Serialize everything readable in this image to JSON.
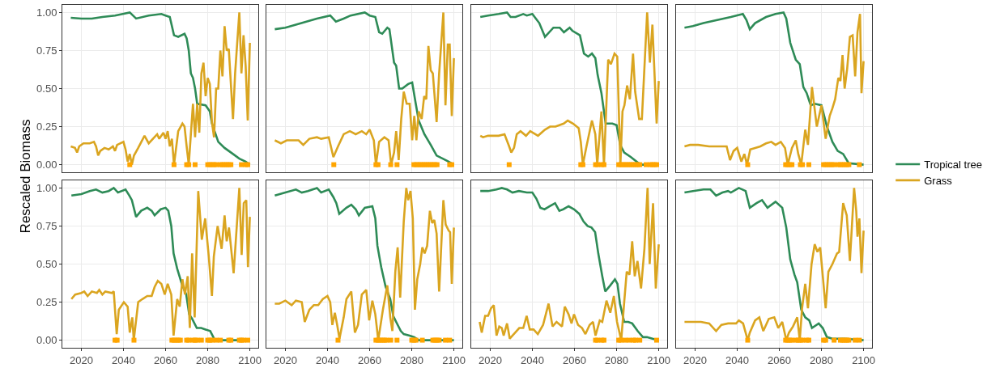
{
  "chart_data": [
    {
      "type": "line",
      "ylabel": "Rescaled Biomass",
      "xlim": [
        2011,
        2104
      ],
      "xticks": [
        2020,
        2040,
        2060,
        2080,
        2100
      ],
      "ylim": [
        -0.05,
        1.05
      ],
      "yticks": [
        {
          "value": 0,
          "label": "0.00"
        },
        {
          "value": 0.25,
          "label": "0.25"
        },
        {
          "value": 0.5,
          "label": "0.50"
        },
        {
          "value": 0.75,
          "label": "0.75"
        },
        {
          "value": 1,
          "label": "1.00"
        }
      ],
      "grid": true,
      "tick_labels": "y",
      "series": [
        {
          "color": "#2e8b57",
          "x": [
            2015,
            2020,
            2025,
            2030,
            2036,
            2043,
            2046,
            2052,
            2058,
            2060,
            2062,
            2064,
            2066,
            2069,
            2070,
            2071,
            2072,
            2073,
            2074,
            2075,
            2079,
            2081,
            2082,
            2085,
            2088,
            2092,
            2095,
            2098,
            2100
          ],
          "values": [
            0.965,
            0.96,
            0.96,
            0.97,
            0.98,
            1.0,
            0.96,
            0.98,
            0.99,
            0.98,
            0.97,
            0.85,
            0.84,
            0.86,
            0.83,
            0.75,
            0.6,
            0.57,
            0.5,
            0.4,
            0.39,
            0.35,
            0.27,
            0.15,
            0.11,
            0.07,
            0.04,
            0.02,
            0.0
          ]
        },
        {
          "color": "#daa520",
          "x": [
            2015,
            2017,
            2018,
            2019,
            2021,
            2024,
            2026,
            2027,
            2028,
            2029,
            2031,
            2033,
            2035,
            2036,
            2037,
            2040,
            2041,
            2042,
            2043,
            2044,
            2045,
            2047,
            2050,
            2052,
            2054,
            2056,
            2057,
            2059,
            2060,
            2061,
            2062,
            2063,
            2064,
            2066,
            2068,
            2069,
            2070,
            2071,
            2072,
            2073,
            2074,
            2075,
            2076,
            2077,
            2078,
            2079,
            2080,
            2081,
            2082,
            2083,
            2084,
            2085,
            2086,
            2087,
            2088,
            2089,
            2090,
            2092,
            2093,
            2095,
            2096,
            2097,
            2098,
            2099,
            2100
          ],
          "values": [
            0.12,
            0.11,
            0.08,
            0.12,
            0.14,
            0.14,
            0.15,
            0.12,
            0.06,
            0.09,
            0.11,
            0.1,
            0.12,
            0.09,
            0.13,
            0.15,
            0.1,
            0.02,
            0.07,
            0.0,
            0.06,
            0.11,
            0.19,
            0.14,
            0.17,
            0.2,
            0.17,
            0.21,
            0.17,
            0.22,
            0.12,
            0.17,
            0.0,
            0.22,
            0.27,
            0.25,
            0.12,
            0.0,
            0.2,
            0.4,
            0.18,
            0.4,
            0.21,
            0.6,
            0.67,
            0.45,
            0.57,
            0.53,
            0.28,
            0.18,
            0.5,
            0.5,
            0.75,
            0.58,
            0.91,
            0.75,
            0.76,
            0.3,
            0.6,
            1.0,
            0.6,
            0.85,
            0.65,
            0.29,
            0.8
          ]
        },
        {
          "type": "scatter",
          "color": "#ffa500",
          "x": [
            2043,
            2064,
            2070,
            2071,
            2074,
            2080,
            2081,
            2082,
            2083,
            2084,
            2086,
            2087,
            2088,
            2089,
            2090,
            2091,
            2096,
            2098,
            2099
          ],
          "values": [
            0,
            0,
            0,
            0,
            0,
            0,
            0,
            0,
            0,
            0,
            0,
            0,
            0,
            0,
            0,
            0,
            0,
            0,
            0
          ]
        }
      ]
    },
    {
      "type": "line",
      "xlim": [
        2011,
        2104
      ],
      "xticks": [
        2020,
        2040,
        2060,
        2080,
        2100
      ],
      "ylim": [
        -0.05,
        1.05
      ],
      "yticks": [
        0,
        0.25,
        0.5,
        0.75,
        1
      ],
      "grid": true,
      "tick_labels": false,
      "series": [
        {
          "color": "#2e8b57",
          "x": [
            2015,
            2020,
            2025,
            2030,
            2035,
            2041.3,
            2044,
            2047.7,
            2051,
            2057.7,
            2060,
            2062.7,
            2064.5,
            2066,
            2068.4,
            2069.4,
            2070.5,
            2071.6,
            2072.6,
            2074,
            2075.5,
            2078.3,
            2080.2,
            2081.9,
            2083.3,
            2086,
            2089,
            2091.8,
            2094.7,
            2097.5,
            2100
          ],
          "values": [
            0.89,
            0.9,
            0.92,
            0.94,
            0.96,
            0.98,
            0.94,
            0.96,
            0.98,
            1.0,
            0.98,
            0.97,
            0.87,
            0.86,
            0.9,
            0.89,
            0.78,
            0.67,
            0.65,
            0.5,
            0.5,
            0.53,
            0.54,
            0.4,
            0.29,
            0.2,
            0.13,
            0.06,
            0.04,
            0.02,
            0.0
          ]
        },
        {
          "color": "#daa520",
          "x": [
            2015,
            2017.9,
            2020.7,
            2023.5,
            2026.3,
            2028.5,
            2031.4,
            2035,
            2037,
            2040.6,
            2042.8,
            2045,
            2047.7,
            2050.6,
            2053.4,
            2056.3,
            2058.4,
            2060,
            2062,
            2063,
            2064.5,
            2067,
            2069,
            2070.2,
            2071.6,
            2072.6,
            2073.8,
            2075,
            2076.2,
            2077.6,
            2079,
            2080.2,
            2081.2,
            2082.2,
            2083.3,
            2084.7,
            2085.9,
            2086.9,
            2087.9,
            2089,
            2090,
            2091.8,
            2093,
            2095,
            2096,
            2097.1,
            2098,
            2099,
            2100
          ],
          "values": [
            0.16,
            0.14,
            0.16,
            0.16,
            0.16,
            0.13,
            0.17,
            0.18,
            0.17,
            0.18,
            0.05,
            0.12,
            0.2,
            0.22,
            0.2,
            0.22,
            0.2,
            0.23,
            0.16,
            0.0,
            0.15,
            0.18,
            0.16,
            0.0,
            0.08,
            0.22,
            0.03,
            0.3,
            0.48,
            0.4,
            0.4,
            0.16,
            0.32,
            0.16,
            0.35,
            0.3,
            0.45,
            0.43,
            0.78,
            0.62,
            0.6,
            0.28,
            0.6,
            1.0,
            0.39,
            0.79,
            0.79,
            0.32,
            0.7
          ]
        },
        {
          "type": "scatter",
          "color": "#ffa500",
          "x": [
            2043,
            2063,
            2064,
            2070,
            2073,
            2081,
            2082,
            2083,
            2084,
            2085,
            2086,
            2087,
            2088,
            2089,
            2090,
            2091,
            2092,
            2098,
            2099
          ],
          "values": [
            0,
            0,
            0,
            0,
            0,
            0,
            0,
            0,
            0,
            0,
            0,
            0,
            0,
            0,
            0,
            0,
            0,
            0,
            0
          ]
        }
      ]
    },
    {
      "type": "line",
      "xlim": [
        2011,
        2104
      ],
      "xticks": [
        2020,
        2040,
        2060,
        2080,
        2100
      ],
      "ylim": [
        -0.05,
        1.05
      ],
      "yticks": [
        0,
        0.25,
        0.5,
        0.75,
        1
      ],
      "grid": true,
      "tick_labels": false,
      "series": [
        {
          "color": "#2e8b57",
          "x": [
            2015.3,
            2019,
            2024,
            2028,
            2029.7,
            2032,
            2035.7,
            2037.4,
            2040,
            2043.3,
            2046,
            2050,
            2053,
            2055,
            2057.7,
            2059,
            2062.6,
            2064.5,
            2066.5,
            2068.3,
            2069.9,
            2071,
            2072.8,
            2074.8,
            2078,
            2080,
            2081.7,
            2083.6,
            2086.8,
            2091.3,
            2100
          ],
          "values": [
            0.97,
            0.98,
            0.99,
            1.0,
            0.97,
            0.97,
            0.99,
            0.98,
            0.99,
            0.93,
            0.84,
            0.9,
            0.9,
            0.87,
            0.9,
            0.88,
            0.85,
            0.73,
            0.71,
            0.73,
            0.7,
            0.59,
            0.47,
            0.27,
            0.27,
            0.26,
            0.13,
            0.08,
            0.05,
            0.0,
            0.0
          ]
        },
        {
          "color": "#daa520",
          "x": [
            2015.3,
            2016.6,
            2019,
            2021.7,
            2024,
            2026.8,
            2029,
            2030,
            2031.3,
            2032.6,
            2034.4,
            2037,
            2039,
            2042.7,
            2046,
            2048.4,
            2051,
            2054.9,
            2056.8,
            2059.3,
            2062,
            2063,
            2064,
            2065.7,
            2068.3,
            2069.9,
            2070.8,
            2072.8,
            2074,
            2076,
            2077.3,
            2079,
            2080.3,
            2081.8,
            2082.8,
            2083.7,
            2085,
            2086.3,
            2087.8,
            2088.8,
            2090.7,
            2092,
            2094.5,
            2095.8,
            2097,
            2099,
            2100
          ],
          "values": [
            0.19,
            0.18,
            0.19,
            0.19,
            0.19,
            0.2,
            0.12,
            0.08,
            0.11,
            0.2,
            0.22,
            0.19,
            0.22,
            0.19,
            0.23,
            0.25,
            0.25,
            0.27,
            0.29,
            0.27,
            0.24,
            0.15,
            0.0,
            0.12,
            0.29,
            0.2,
            0.0,
            0.35,
            0.0,
            0.69,
            0.66,
            0.73,
            0.71,
            0.0,
            0.35,
            0.39,
            0.52,
            0.43,
            0.73,
            0.48,
            0.3,
            0.3,
            1.0,
            0.67,
            0.92,
            0.27,
            0.55
          ]
        },
        {
          "type": "scatter",
          "color": "#ffa500",
          "x": [
            2029,
            2063,
            2064,
            2070,
            2071,
            2073,
            2074,
            2081,
            2082,
            2083,
            2084,
            2085,
            2086,
            2087,
            2088,
            2089,
            2090,
            2091,
            2094,
            2096,
            2097,
            2098,
            2099
          ],
          "values": [
            0,
            0,
            0,
            0,
            0,
            0,
            0,
            0,
            0,
            0,
            0,
            0,
            0,
            0,
            0,
            0,
            0,
            0,
            0,
            0,
            0,
            0,
            0
          ]
        }
      ]
    },
    {
      "type": "line",
      "xlim": [
        2011,
        2104
      ],
      "xticks": [
        2020,
        2040,
        2060,
        2080,
        2100
      ],
      "ylim": [
        -0.05,
        1.05
      ],
      "yticks": [
        0,
        0.25,
        0.5,
        0.75,
        1
      ],
      "grid": true,
      "tick_labels": false,
      "legend": "right",
      "series": [
        {
          "name": "Tropical tree",
          "color": "#2e8b57",
          "x": [
            2015,
            2019,
            2024,
            2030.5,
            2037,
            2042.7,
            2044.4,
            2046,
            2048.5,
            2053.7,
            2058.2,
            2062,
            2063.3,
            2065.2,
            2067.8,
            2069.7,
            2071.4,
            2073,
            2074.9,
            2076.8,
            2080,
            2082.6,
            2085.2,
            2087.7,
            2090.3,
            2092.9,
            2100
          ],
          "values": [
            0.9,
            0.91,
            0.93,
            0.95,
            0.97,
            0.99,
            0.95,
            0.89,
            0.93,
            0.97,
            0.99,
            1.0,
            0.96,
            0.8,
            0.69,
            0.66,
            0.51,
            0.47,
            0.39,
            0.4,
            0.39,
            0.25,
            0.15,
            0.09,
            0.07,
            0.01,
            0.0
          ]
        },
        {
          "name": "Grass",
          "color": "#daa520",
          "x": [
            2015,
            2017.6,
            2021.5,
            2026.7,
            2031.8,
            2035,
            2036.6,
            2038.3,
            2040,
            2042,
            2043.4,
            2044.7,
            2046.2,
            2048.5,
            2051,
            2053.7,
            2056.2,
            2058.2,
            2060.7,
            2062.7,
            2064,
            2066,
            2067.8,
            2069,
            2070.4,
            2072.3,
            2073.6,
            2075.5,
            2077.8,
            2080,
            2082,
            2083.9,
            2085.2,
            2086.5,
            2088,
            2089,
            2090,
            2091,
            2092.2,
            2093.5,
            2094.8,
            2096,
            2097.1,
            2098.3,
            2099,
            2100
          ],
          "values": [
            0.12,
            0.13,
            0.13,
            0.12,
            0.12,
            0.12,
            0.03,
            0.09,
            0.11,
            0.02,
            0.07,
            0.0,
            0.1,
            0.11,
            0.12,
            0.14,
            0.15,
            0.13,
            0.15,
            0.11,
            0.0,
            0.11,
            0.16,
            0.07,
            0.0,
            0.23,
            0.13,
            0.51,
            0.25,
            0.39,
            0.17,
            0.32,
            0.37,
            0.43,
            0.57,
            0.55,
            0.72,
            0.5,
            0.63,
            0.84,
            0.85,
            0.58,
            0.87,
            0.99,
            0.47,
            0.68
          ]
        },
        {
          "type": "scatter",
          "color": "#ffa500",
          "x": [
            2045,
            2063,
            2064,
            2065,
            2066,
            2070,
            2071,
            2074,
            2081,
            2082,
            2083,
            2084,
            2085,
            2086,
            2088,
            2089,
            2090,
            2091,
            2092,
            2093,
            2098
          ],
          "values": [
            0,
            0,
            0,
            0,
            0,
            0,
            0,
            0,
            0,
            0,
            0,
            0,
            0,
            0,
            0,
            0,
            0,
            0,
            0,
            0,
            0
          ]
        }
      ]
    },
    {
      "type": "line",
      "xlim": [
        2011,
        2104
      ],
      "xticks": [
        2020,
        2040,
        2060,
        2080,
        2100
      ],
      "ylim": [
        -0.05,
        1.05
      ],
      "yticks": [
        {
          "value": 0,
          "label": "0.00"
        },
        {
          "value": 0.25,
          "label": "0.25"
        },
        {
          "value": 0.5,
          "label": "0.50"
        },
        {
          "value": 0.75,
          "label": "0.75"
        },
        {
          "value": 1,
          "label": "1.00"
        }
      ],
      "grid": true,
      "series": [
        {
          "color": "#2e8b57",
          "x": [
            2015.3,
            2020,
            2024,
            2027,
            2030,
            2033,
            2035.4,
            2037.4,
            2041,
            2042.8,
            2044,
            2046,
            2048.4,
            2051.3,
            2053.4,
            2054.8,
            2057.7,
            2060,
            2061.3,
            2062.7,
            2063.8,
            2065.5,
            2067.7,
            2069.8,
            2071.2,
            2072.6,
            2074.8,
            2076.9,
            2079,
            2081.2,
            2083.4,
            2100
          ],
          "values": [
            0.95,
            0.96,
            0.98,
            0.99,
            0.97,
            0.98,
            1.0,
            0.97,
            0.99,
            0.95,
            0.92,
            0.81,
            0.85,
            0.87,
            0.85,
            0.82,
            0.86,
            0.87,
            0.85,
            0.75,
            0.57,
            0.47,
            0.37,
            0.3,
            0.17,
            0.14,
            0.08,
            0.08,
            0.07,
            0.06,
            0.0,
            0.0
          ]
        },
        {
          "color": "#daa520",
          "x": [
            2015.3,
            2017.1,
            2020,
            2021.4,
            2023,
            2025,
            2027.4,
            2028.5,
            2030,
            2031.4,
            2034.5,
            2035.4,
            2036.8,
            2037.8,
            2040.2,
            2042,
            2043,
            2044.2,
            2044.9,
            2047,
            2049,
            2051.3,
            2053.4,
            2054.8,
            2056.3,
            2058,
            2059.6,
            2061,
            2062.7,
            2063.8,
            2065.5,
            2066.7,
            2068,
            2069.2,
            2070.5,
            2071.5,
            2072.6,
            2073.8,
            2075.5,
            2077.2,
            2078.8,
            2080.5,
            2082,
            2082.9,
            2084.7,
            2086.6,
            2088,
            2089,
            2090.1,
            2092.3,
            2095,
            2096.1,
            2097.1,
            2098.3,
            2099.1,
            2100
          ],
          "values": [
            0.27,
            0.3,
            0.31,
            0.32,
            0.29,
            0.32,
            0.31,
            0.33,
            0.3,
            0.32,
            0.31,
            0.32,
            0.04,
            0.2,
            0.25,
            0.22,
            0.05,
            0.15,
            0.0,
            0.25,
            0.27,
            0.29,
            0.29,
            0.35,
            0.39,
            0.37,
            0.3,
            0.37,
            0.3,
            0.03,
            0.27,
            0.22,
            0.4,
            0.3,
            0.42,
            0.08,
            0.57,
            0.15,
            0.98,
            0.66,
            0.8,
            0.55,
            0.29,
            0.55,
            0.75,
            0.6,
            0.82,
            0.65,
            0.74,
            0.44,
            1.0,
            0.56,
            0.9,
            0.92,
            0.48,
            0.81
          ]
        },
        {
          "type": "scatter",
          "color": "#ffa500",
          "x": [
            2036,
            2037,
            2045,
            2063,
            2064,
            2065,
            2066,
            2067,
            2070,
            2071,
            2073,
            2074,
            2075,
            2077,
            2080,
            2081,
            2082,
            2084,
            2086,
            2090,
            2091,
            2095,
            2096,
            2097,
            2099
          ],
          "values": [
            0,
            0,
            0,
            0,
            0,
            0,
            0,
            0,
            0,
            0,
            0,
            0,
            0,
            0,
            0,
            0,
            0,
            0,
            0,
            0,
            0,
            0,
            0,
            0,
            0
          ]
        }
      ]
    },
    {
      "type": "line",
      "xlim": [
        2011,
        2104
      ],
      "xticks": [
        2020,
        2040,
        2060,
        2080,
        2100
      ],
      "ylim": [
        -0.05,
        1.05
      ],
      "yticks": [
        0,
        0.25,
        0.5,
        0.75,
        1
      ],
      "grid": true,
      "tick_labels": "x",
      "series": [
        {
          "color": "#2e8b57",
          "x": [
            2015,
            2020,
            2025,
            2027.8,
            2030.7,
            2035,
            2037,
            2040.6,
            2042.8,
            2044.2,
            2045.6,
            2049,
            2051.3,
            2053.4,
            2054.9,
            2057.7,
            2061.3,
            2062.7,
            2063.7,
            2065.5,
            2067.6,
            2069.8,
            2071.2,
            2072.6,
            2074.8,
            2076.2,
            2079,
            2081.2,
            2083.3,
            2100
          ],
          "values": [
            0.95,
            0.97,
            0.99,
            0.97,
            0.98,
            1.0,
            0.97,
            0.99,
            0.94,
            0.9,
            0.83,
            0.87,
            0.89,
            0.86,
            0.82,
            0.87,
            0.88,
            0.8,
            0.62,
            0.48,
            0.35,
            0.27,
            0.16,
            0.12,
            0.06,
            0.04,
            0.03,
            0.02,
            0.0,
            0.0
          ]
        },
        {
          "color": "#daa520",
          "x": [
            2015,
            2017.1,
            2020,
            2023,
            2025,
            2027.8,
            2029.2,
            2031.4,
            2033.5,
            2035.6,
            2037.8,
            2040,
            2041.3,
            2042.3,
            2043.5,
            2044.6,
            2045.7,
            2047.7,
            2049,
            2051.3,
            2053,
            2054.5,
            2056.3,
            2058.4,
            2059.8,
            2061.3,
            2062.7,
            2064.1,
            2066.3,
            2068.4,
            2069.8,
            2070.8,
            2072.2,
            2073.3,
            2074.5,
            2076.2,
            2077.4,
            2078.3,
            2079.4,
            2080.5,
            2081.5,
            2082.6,
            2084,
            2085,
            2086.1,
            2087.3,
            2088.6,
            2089.7,
            2090.7,
            2091.8,
            2093,
            2095,
            2096.1,
            2097.5,
            2098.2,
            2099,
            2100
          ],
          "values": [
            0.24,
            0.24,
            0.26,
            0.23,
            0.26,
            0.25,
            0.12,
            0.2,
            0.23,
            0.23,
            0.27,
            0.29,
            0.25,
            0.1,
            0.18,
            0.1,
            0.01,
            0.15,
            0.27,
            0.32,
            0.05,
            0.1,
            0.3,
            0.33,
            0.13,
            0.26,
            0.17,
            0.0,
            0.2,
            0.36,
            0.15,
            0.06,
            0.45,
            0.61,
            0.28,
            0.78,
            1.0,
            0.92,
            0.98,
            0.8,
            0.2,
            0.4,
            0.5,
            0.61,
            0.57,
            0.62,
            0.85,
            0.77,
            0.79,
            0.7,
            0.32,
            0.92,
            0.76,
            0.72,
            0.71,
            0.37,
            0.74
          ]
        },
        {
          "type": "scatter",
          "color": "#ffa500",
          "x": [
            2045,
            2063,
            2064,
            2065,
            2066,
            2067,
            2068,
            2070,
            2073,
            2080,
            2081,
            2082,
            2085,
            2090,
            2091,
            2092,
            2093,
            2096,
            2098
          ],
          "values": [
            0,
            0,
            0,
            0,
            0,
            0,
            0,
            0,
            0,
            0,
            0,
            0,
            0,
            0,
            0,
            0,
            0,
            0,
            0
          ]
        }
      ]
    },
    {
      "type": "line",
      "xlim": [
        2011,
        2104
      ],
      "xticks": [
        2020,
        2040,
        2060,
        2080,
        2100
      ],
      "ylim": [
        -0.05,
        1.05
      ],
      "yticks": [
        0,
        0.25,
        0.5,
        0.75,
        1
      ],
      "grid": true,
      "tick_labels": "x",
      "series": [
        {
          "color": "#2e8b57",
          "x": [
            2015.3,
            2019,
            2023,
            2025.5,
            2028,
            2030.6,
            2033.6,
            2037.4,
            2040,
            2041.9,
            2043.8,
            2045.8,
            2048.3,
            2050.8,
            2052.8,
            2054.7,
            2057.2,
            2059.8,
            2062.3,
            2064.3,
            2066.2,
            2068.1,
            2069.8,
            2071.3,
            2073.2,
            2074.6,
            2077,
            2079.2,
            2080.4,
            2081.6,
            2083.6,
            2085.5,
            2087.4,
            2090,
            2092.5,
            2094.4,
            2097,
            2099.6
          ],
          "values": [
            0.98,
            0.98,
            0.99,
            1.0,
            0.99,
            0.97,
            0.98,
            0.97,
            0.97,
            0.93,
            0.87,
            0.86,
            0.88,
            0.9,
            0.85,
            0.86,
            0.88,
            0.86,
            0.83,
            0.78,
            0.75,
            0.74,
            0.71,
            0.57,
            0.42,
            0.32,
            0.36,
            0.4,
            0.37,
            0.24,
            0.12,
            0.12,
            0.11,
            0.06,
            0.02,
            0.02,
            0.01,
            0.0
          ]
        },
        {
          "color": "#daa520",
          "x": [
            2015,
            2016,
            2017.6,
            2019,
            2020.4,
            2021.7,
            2023,
            2024.3,
            2025.5,
            2026.4,
            2028,
            2029.3,
            2031.9,
            2033.8,
            2035.7,
            2037.3,
            2038.8,
            2040.6,
            2042.6,
            2045.1,
            2047.7,
            2049.6,
            2051.5,
            2054.1,
            2055.4,
            2057.2,
            2058.6,
            2059.8,
            2061.7,
            2063.6,
            2065.2,
            2067.2,
            2068.8,
            2070,
            2072,
            2073.2,
            2075.2,
            2077,
            2078.7,
            2080.2,
            2082.2,
            2083.6,
            2084.8,
            2086.1,
            2087.4,
            2088.6,
            2089.9,
            2091.6,
            2093.2,
            2094.7,
            2095.7,
            2097.3,
            2098.6,
            2100
          ],
          "values": [
            0.12,
            0.05,
            0.16,
            0.16,
            0.21,
            0.23,
            0.03,
            0.09,
            0.08,
            0.03,
            0.11,
            0.01,
            0.05,
            0.08,
            0.08,
            0.16,
            0.07,
            0.07,
            0.04,
            0.1,
            0.24,
            0.09,
            0.12,
            0.09,
            0.22,
            0.17,
            0.11,
            0.17,
            0.1,
            0.08,
            0.04,
            0.1,
            0.12,
            0.03,
            0.13,
            0.12,
            0.26,
            0.18,
            0.29,
            0.12,
            0.0,
            0.25,
            0.45,
            0.43,
            0.65,
            0.42,
            0.52,
            0.34,
            0.6,
            1.0,
            0.5,
            0.9,
            0.34,
            0.63
          ]
        },
        {
          "type": "scatter",
          "color": "#ffa500",
          "x": [
            2070,
            2071,
            2073,
            2074,
            2081,
            2082,
            2084,
            2086,
            2088,
            2089,
            2091,
            2099
          ],
          "values": [
            0,
            0,
            0,
            0,
            0,
            0,
            0,
            0,
            0,
            0,
            0,
            0
          ]
        }
      ]
    },
    {
      "type": "line",
      "xlim": [
        2011,
        2104
      ],
      "xticks": [
        2020,
        2040,
        2060,
        2080,
        2100
      ],
      "ylim": [
        -0.05,
        1.05
      ],
      "yticks": [
        0,
        0.25,
        0.5,
        0.75,
        1
      ],
      "grid": true,
      "tick_labels": "x",
      "series": [
        {
          "color": "#2e8b57",
          "x": [
            2015,
            2019,
            2024,
            2027.3,
            2030,
            2033,
            2035.7,
            2037,
            2040.8,
            2044,
            2046,
            2049.2,
            2051.8,
            2054.4,
            2058.2,
            2061.4,
            2063.3,
            2065.2,
            2067.2,
            2068.5,
            2070.4,
            2072.3,
            2074.2,
            2075.5,
            2078.7,
            2080.6,
            2082.6,
            2085.2,
            2091,
            2100
          ],
          "values": [
            0.97,
            0.98,
            0.99,
            0.99,
            0.95,
            0.97,
            0.98,
            0.97,
            1.0,
            0.98,
            0.87,
            0.9,
            0.92,
            0.87,
            0.91,
            0.87,
            0.74,
            0.53,
            0.43,
            0.38,
            0.2,
            0.15,
            0.13,
            0.08,
            0.11,
            0.08,
            0.02,
            0.01,
            0.01,
            0.0
          ]
        },
        {
          "color": "#daa520",
          "x": [
            2015,
            2019,
            2022.8,
            2026.7,
            2030,
            2032.5,
            2035.7,
            2039.5,
            2040.8,
            2042.8,
            2044,
            2045,
            2046,
            2048.5,
            2050.5,
            2052.4,
            2055,
            2057.6,
            2059.5,
            2061.4,
            2063.3,
            2064.6,
            2066.5,
            2068.5,
            2069.7,
            2070.8,
            2072.3,
            2073.6,
            2075.3,
            2076.8,
            2078.1,
            2079.4,
            2082,
            2083.3,
            2085.2,
            2087.4,
            2088.4,
            2090.3,
            2092,
            2093.5,
            2095.5,
            2096.5,
            2097.1,
            2098,
            2099,
            2100
          ],
          "values": [
            0.12,
            0.12,
            0.12,
            0.11,
            0.06,
            0.1,
            0.11,
            0.11,
            0.13,
            0.11,
            0.05,
            0.0,
            0.05,
            0.13,
            0.15,
            0.06,
            0.14,
            0.15,
            0.08,
            0.12,
            0.0,
            0.05,
            0.09,
            0.15,
            0.0,
            0.21,
            0.37,
            0.21,
            0.5,
            0.63,
            0.58,
            0.61,
            0.21,
            0.45,
            0.5,
            0.57,
            0.58,
            0.9,
            0.82,
            0.52,
            1.0,
            0.85,
            0.68,
            0.8,
            0.44,
            0.72
          ]
        },
        {
          "type": "scatter",
          "color": "#ffa500",
          "x": [
            2045,
            2063,
            2064,
            2065,
            2066,
            2068,
            2069,
            2070,
            2071,
            2073,
            2074,
            2081,
            2082,
            2086,
            2089,
            2090,
            2091,
            2092,
            2093,
            2096,
            2098
          ],
          "values": [
            0,
            0,
            0,
            0,
            0,
            0,
            0,
            0,
            0,
            0,
            0,
            0,
            0,
            0,
            0,
            0,
            0,
            0,
            0,
            0,
            0
          ]
        }
      ]
    }
  ]
}
